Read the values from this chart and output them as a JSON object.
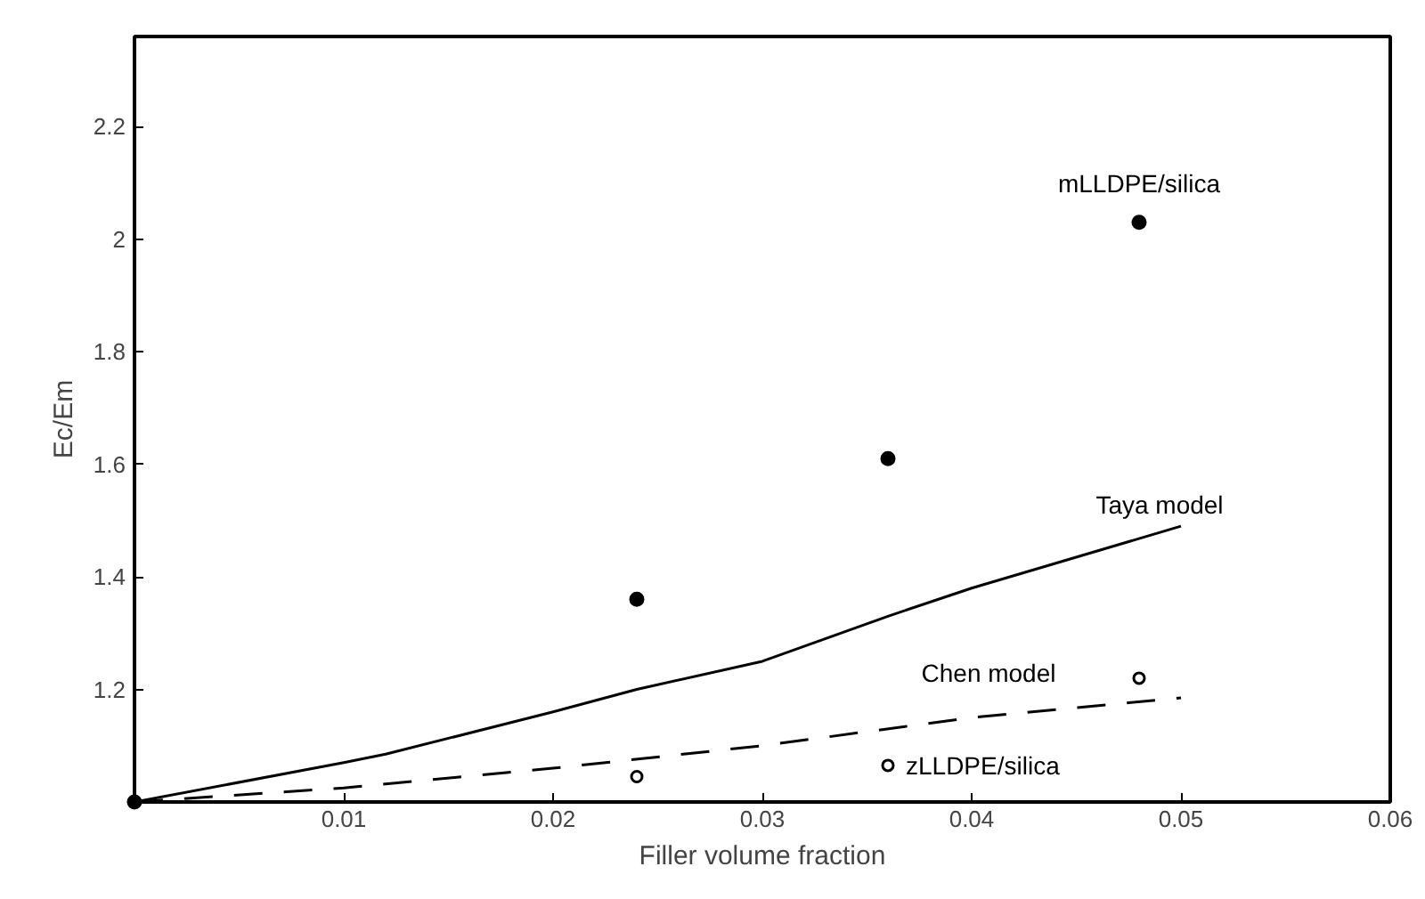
{
  "chart_data": {
    "type": "scatter",
    "xlabel": "Filler volume fraction",
    "ylabel": "Ec/Em",
    "xlim": [
      0,
      0.06
    ],
    "ylim": [
      1.0,
      2.36
    ],
    "xticks": [
      0.01,
      0.02,
      0.03,
      0.04,
      0.05,
      0.06
    ],
    "yticks": [
      1.2,
      1.4,
      1.6,
      1.8,
      2,
      2.2
    ],
    "grid": false,
    "series": [
      {
        "name": "mLLDPE/silica",
        "marker": "circle",
        "color": "#000000",
        "x": [
          0,
          0.024,
          0.036,
          0.048
        ],
        "values": [
          1.0,
          1.36,
          1.61,
          2.03
        ]
      },
      {
        "name": "zLLDPE/silica",
        "marker": "circle",
        "color": "#000000",
        "x": [
          0.024,
          0.036,
          0.048
        ],
        "values": [
          1.045,
          1.065,
          1.22
        ]
      },
      {
        "name": "Taya model",
        "type": "line",
        "line_style": "solid",
        "color": "#000000",
        "x": [
          0,
          0.01,
          0.012,
          0.02,
          0.024,
          0.03,
          0.036,
          0.04,
          0.05
        ],
        "values": [
          1.0,
          1.07,
          1.085,
          1.16,
          1.2,
          1.25,
          1.33,
          1.38,
          1.49
        ]
      },
      {
        "name": "Chen model",
        "type": "line",
        "line_style": "dashed",
        "color": "#000000",
        "x": [
          0,
          0.01,
          0.02,
          0.03,
          0.04,
          0.05
        ],
        "values": [
          1.0,
          1.025,
          1.06,
          1.1,
          1.15,
          1.185
        ]
      }
    ]
  }
}
